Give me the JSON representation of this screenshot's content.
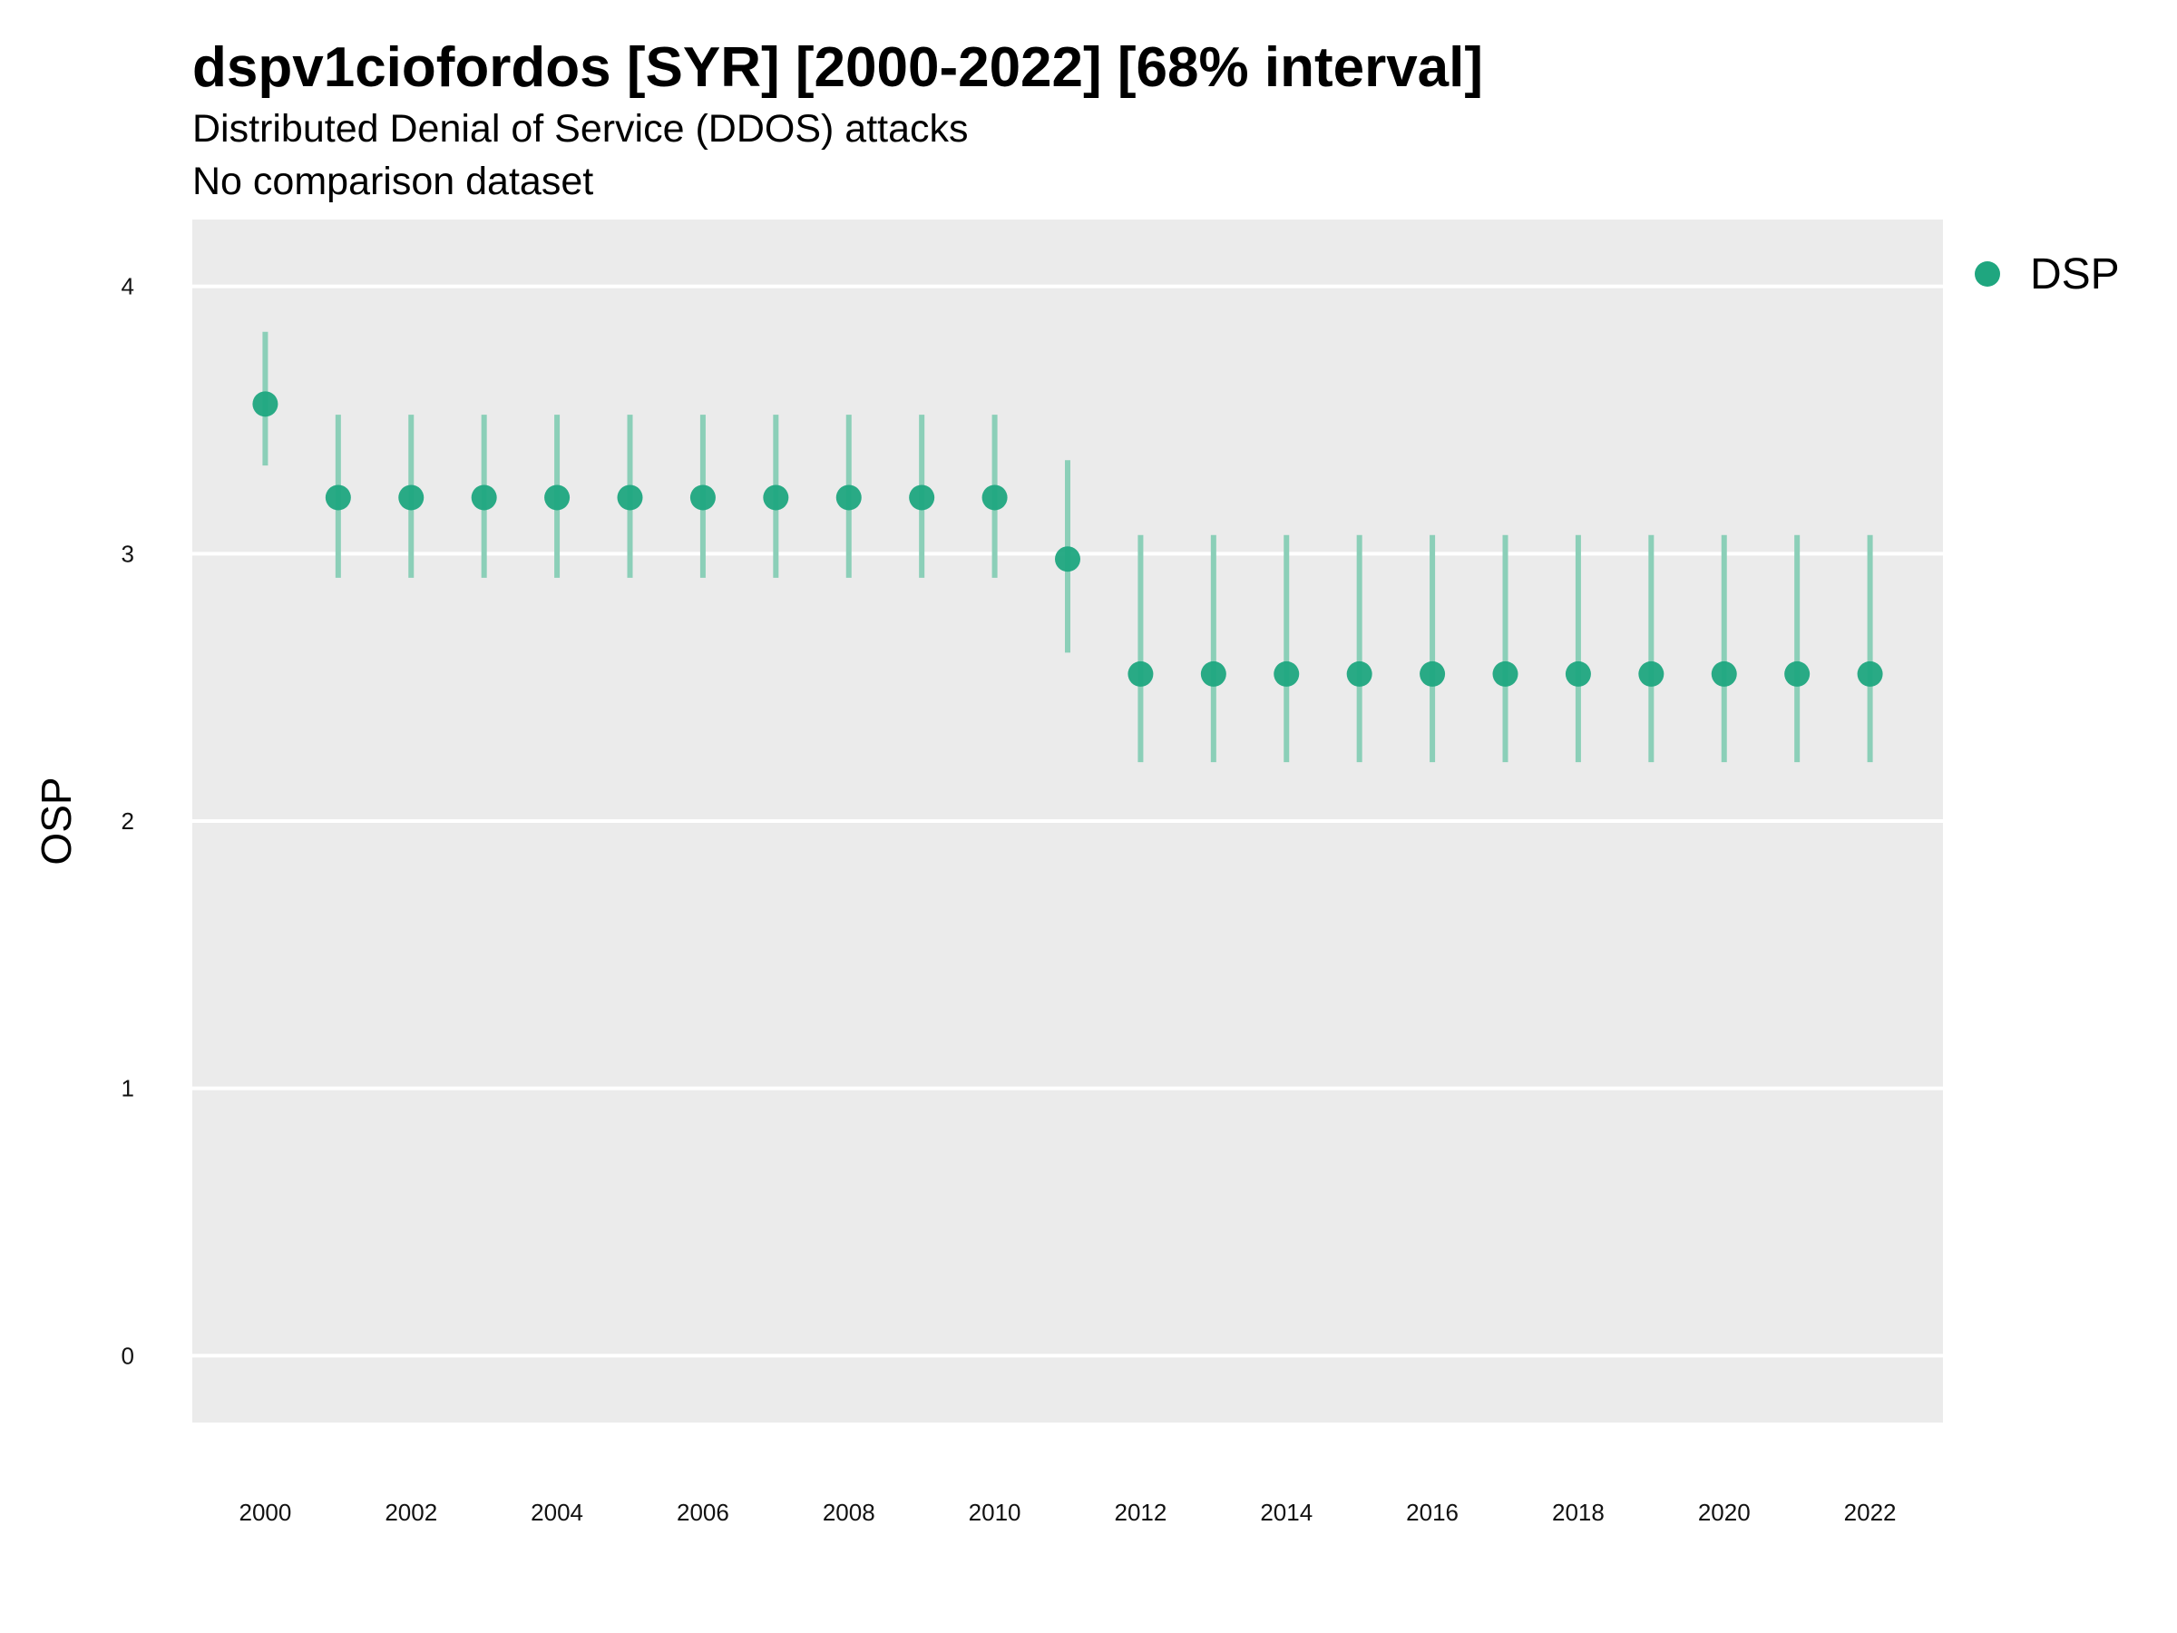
{
  "chart_data": {
    "type": "scatter",
    "title": "dspv1ciofordos [SYR] [2000-2022] [68% interval]",
    "subtitle_lines": [
      "Distributed Denial of Service (DDOS) attacks",
      "No comparison dataset"
    ],
    "xlabel": "",
    "ylabel": "OSP",
    "ylim": [
      -0.25,
      4.25
    ],
    "xlim": [
      1999.0,
      2023.0
    ],
    "yticks": [
      0,
      1,
      2,
      3,
      4
    ],
    "xticks": [
      2000,
      2002,
      2004,
      2006,
      2008,
      2010,
      2012,
      2014,
      2016,
      2018,
      2020,
      2022
    ],
    "grid": true,
    "legend_position": "top-right",
    "series": [
      {
        "name": "DSP",
        "color": "#1fa67f",
        "error_color": "#8bcfb8",
        "x": [
          2000,
          2001,
          2002,
          2003,
          2004,
          2005,
          2006,
          2007,
          2008,
          2009,
          2010,
          2011,
          2012,
          2013,
          2014,
          2015,
          2016,
          2017,
          2018,
          2019,
          2020,
          2021,
          2022
        ],
        "y": [
          3.56,
          3.21,
          3.21,
          3.21,
          3.21,
          3.21,
          3.21,
          3.21,
          3.21,
          3.21,
          3.21,
          2.98,
          2.55,
          2.55,
          2.55,
          2.55,
          2.55,
          2.55,
          2.55,
          2.55,
          2.55,
          2.55,
          2.55
        ],
        "lower": [
          3.33,
          2.91,
          2.91,
          2.91,
          2.91,
          2.91,
          2.91,
          2.91,
          2.91,
          2.91,
          2.91,
          2.63,
          2.22,
          2.22,
          2.22,
          2.22,
          2.22,
          2.22,
          2.22,
          2.22,
          2.22,
          2.22,
          2.22
        ],
        "upper": [
          3.83,
          3.52,
          3.52,
          3.52,
          3.52,
          3.52,
          3.52,
          3.52,
          3.52,
          3.52,
          3.52,
          3.35,
          3.07,
          3.07,
          3.07,
          3.07,
          3.07,
          3.07,
          3.07,
          3.07,
          3.07,
          3.07,
          3.07
        ]
      }
    ]
  }
}
